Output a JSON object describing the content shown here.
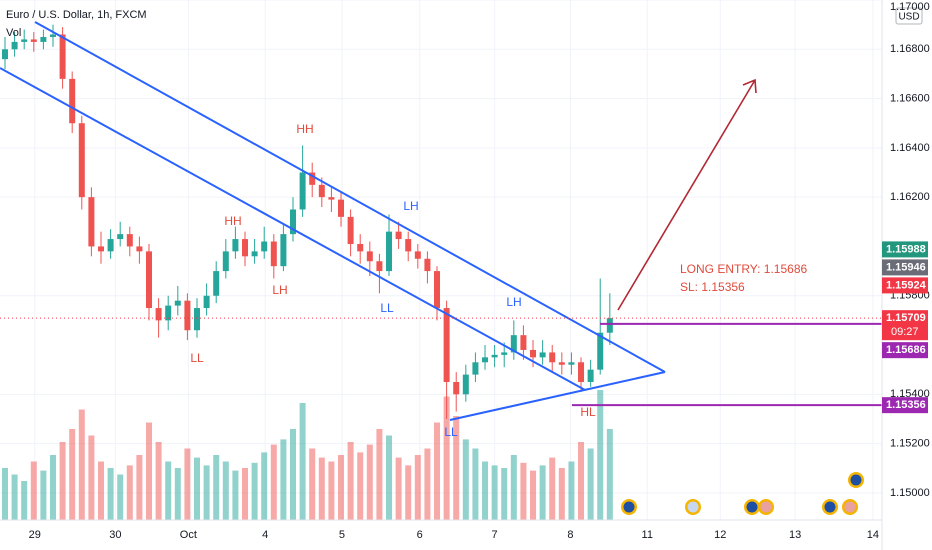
{
  "chart_data": {
    "type": "candlestick",
    "title": "Euro / U.S. Dollar, 1h, FXCM",
    "volume_label": "Vol",
    "currency": "USD",
    "up_color": "#26a69a",
    "down_color": "#ef5350",
    "open": [
      1.1676,
      1.168,
      1.1683,
      1.1684,
      1.1683,
      1.1685,
      1.1686,
      1.1668,
      1.165,
      1.162,
      1.16,
      1.1598,
      1.1603,
      1.1605,
      1.16,
      1.1598,
      1.1575,
      1.157,
      1.1576,
      1.1578,
      1.1566,
      1.1575,
      1.158,
      1.159,
      1.1598,
      1.1603,
      1.1596,
      1.1598,
      1.1602,
      1.1592,
      1.1605,
      1.1615,
      1.163,
      1.1625,
      1.162,
      1.1619,
      1.1612,
      1.1601,
      1.1598,
      1.1594,
      1.159,
      1.1606,
      1.1603,
      1.1598,
      1.1595,
      1.159,
      1.1575,
      1.1545,
      1.154,
      1.1548,
      1.1553,
      1.1555,
      1.1556,
      1.1557,
      1.1564,
      1.1558,
      1.1555,
      1.1557,
      1.1553,
      1.1552,
      1.1553,
      1.1545,
      1.155,
      1.1565
    ],
    "high": [
      1.1685,
      1.1687,
      1.1688,
      1.1687,
      1.1688,
      1.169,
      1.1689,
      1.1671,
      1.1653,
      1.1624,
      1.1606,
      1.1607,
      1.161,
      1.1608,
      1.1604,
      1.1601,
      1.1579,
      1.158,
      1.1584,
      1.1581,
      1.1579,
      1.1585,
      1.1594,
      1.1603,
      1.1608,
      1.1606,
      1.1603,
      1.1608,
      1.1605,
      1.1609,
      1.162,
      1.1641,
      1.1634,
      1.1628,
      1.1624,
      1.1622,
      1.1615,
      1.1605,
      1.1602,
      1.1597,
      1.1613,
      1.161,
      1.1606,
      1.1601,
      1.1598,
      1.1592,
      1.1578,
      1.1549,
      1.1552,
      1.1557,
      1.156,
      1.156,
      1.1561,
      1.157,
      1.1568,
      1.1562,
      1.1562,
      1.156,
      1.1557,
      1.1557,
      1.1555,
      1.1554,
      1.1587,
      1.1581
    ],
    "low": [
      1.1672,
      1.1677,
      1.168,
      1.1679,
      1.168,
      1.1681,
      1.1664,
      1.1646,
      1.1615,
      1.1596,
      1.1593,
      1.1595,
      1.16,
      1.1596,
      1.1593,
      1.157,
      1.1563,
      1.1566,
      1.1572,
      1.1562,
      1.1563,
      1.1572,
      1.1577,
      1.1587,
      1.1595,
      1.1592,
      1.1593,
      1.1595,
      1.1587,
      1.159,
      1.1602,
      1.1612,
      1.162,
      1.1616,
      1.1614,
      1.1608,
      1.1596,
      1.1593,
      1.1588,
      1.1581,
      1.1588,
      1.1599,
      1.1594,
      1.1591,
      1.1585,
      1.157,
      1.153,
      1.1533,
      1.1537,
      1.1545,
      1.155,
      1.1551,
      1.1551,
      1.1554,
      1.1554,
      1.1551,
      1.1552,
      1.1549,
      1.1548,
      1.1548,
      1.1541,
      1.1543,
      1.1548,
      1.156
    ],
    "close": [
      1.168,
      1.1683,
      1.1684,
      1.1683,
      1.1685,
      1.1686,
      1.1668,
      1.165,
      1.162,
      1.16,
      1.1598,
      1.1603,
      1.1605,
      1.16,
      1.1598,
      1.1575,
      1.157,
      1.1576,
      1.1578,
      1.1566,
      1.1575,
      1.158,
      1.159,
      1.1598,
      1.1603,
      1.1596,
      1.1598,
      1.1602,
      1.1592,
      1.1605,
      1.1615,
      1.163,
      1.1625,
      1.162,
      1.1619,
      1.1612,
      1.1601,
      1.1598,
      1.1594,
      1.159,
      1.1606,
      1.1603,
      1.1598,
      1.1595,
      1.159,
      1.1575,
      1.1545,
      1.154,
      1.1548,
      1.1553,
      1.1555,
      1.1556,
      1.1557,
      1.1564,
      1.1558,
      1.1555,
      1.1557,
      1.1553,
      1.1552,
      1.1553,
      1.1545,
      1.155,
      1.1565,
      1.15709
    ],
    "volume": [
      40,
      35,
      30,
      45,
      38,
      50,
      60,
      70,
      85,
      65,
      45,
      40,
      35,
      42,
      50,
      75,
      60,
      45,
      40,
      55,
      48,
      42,
      50,
      45,
      38,
      40,
      44,
      52,
      58,
      62,
      70,
      90,
      55,
      48,
      45,
      50,
      60,
      52,
      58,
      70,
      65,
      48,
      42,
      50,
      55,
      75,
      95,
      80,
      62,
      55,
      45,
      42,
      40,
      50,
      44,
      38,
      42,
      48,
      40,
      45,
      60,
      55,
      100,
      70
    ],
    "volume_ylim": [
      0,
      100
    ],
    "xlim": [
      -0.52,
      91.35
    ],
    "xticks": [
      {
        "value": 3.1,
        "label": "29"
      },
      {
        "value": 11.5,
        "label": "30"
      },
      {
        "value": 19.1,
        "label": "Oct"
      },
      {
        "value": 27.1,
        "label": "4"
      },
      {
        "value": 35.1,
        "label": "5"
      },
      {
        "value": 43.2,
        "label": "6"
      },
      {
        "value": 51.0,
        "label": "7"
      },
      {
        "value": 58.9,
        "label": "8"
      },
      {
        "value": 66.9,
        "label": "11"
      },
      {
        "value": 74.5,
        "label": "12"
      },
      {
        "value": 82.3,
        "label": "13"
      },
      {
        "value": 90.4,
        "label": "14"
      }
    ],
    "ylim": [
      1.1489,
      1.17
    ],
    "yticks": [
      {
        "value": 1.15,
        "label": "1.15000"
      },
      {
        "value": 1.152,
        "label": "1.15200"
      },
      {
        "value": 1.154,
        "label": "1.15400"
      },
      {
        "value": 1.158,
        "label": "1.15800"
      },
      {
        "value": 1.162,
        "label": "1.16200"
      },
      {
        "value": 1.164,
        "label": "1.16400"
      },
      {
        "value": 1.166,
        "label": "1.16600"
      },
      {
        "value": 1.168,
        "label": "1.16800"
      },
      {
        "value": 1.17,
        "label": "1.17000"
      }
    ],
    "grid": true,
    "price_labels": [
      {
        "value": 1.15988,
        "color": "#22977e"
      },
      {
        "value": 1.15946,
        "color": "#6a6d78"
      },
      {
        "value": 1.15924,
        "color": "#f23645"
      },
      {
        "value": 1.15709,
        "color": "#f23645"
      },
      {
        "value": 1.15686,
        "color": "#9c27b0"
      },
      {
        "value": 1.15356,
        "color": "#9c27b0"
      }
    ],
    "countdown": "09:27",
    "annotations": [
      "HH",
      "HH",
      "LH",
      "LL",
      "LH",
      "LL",
      "LH",
      "LL",
      "HL"
    ],
    "notes": [
      "LONG ENTRY: 1.15686",
      "SL: 1.15356"
    ]
  }
}
